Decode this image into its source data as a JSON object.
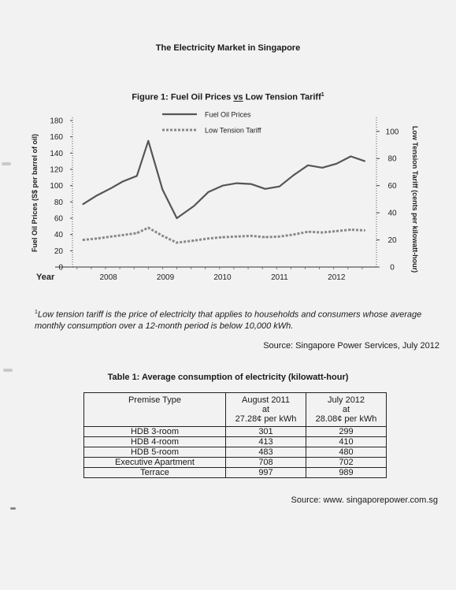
{
  "document": {
    "title": "The Electricity Market in Singapore",
    "figure_title": {
      "pre": "Figure 1: Fuel Oil Prices ",
      "vs": "vs",
      "post": " Low Tension Tariff",
      "sup": "1"
    }
  },
  "chart_data": {
    "type": "line",
    "title": "Figure 1: Fuel Oil Prices vs Low Tension Tariff",
    "x_label": "Year",
    "x_ticks": [
      "2008",
      "2009",
      "2010",
      "2011",
      "2012"
    ],
    "y_left_label": "Fuel Oil Prices (S$ per barrel of oil)",
    "y_left_ticks": [
      "0",
      "20",
      "40",
      "60",
      "80",
      "100",
      "120",
      "140",
      "160",
      "180"
    ],
    "y_left_range": [
      0,
      180
    ],
    "y_right_label": "Low Tension Tariff (cents per kilowatt-hour)",
    "y_right_ticks": [
      "0",
      "20",
      "40",
      "60",
      "80",
      "100"
    ],
    "y_right_range": [
      0,
      108
    ],
    "legend_position": "top-center",
    "series": [
      {
        "name": "Fuel Oil Prices",
        "axis": "left",
        "style": "solid",
        "color": "#555555",
        "x": [
          2007.6,
          2007.85,
          2008.1,
          2008.3,
          2008.55,
          2008.75,
          2009.0,
          2009.25,
          2009.55,
          2009.8,
          2010.05,
          2010.3,
          2010.55,
          2010.8,
          2011.05,
          2011.3,
          2011.55,
          2011.8,
          2012.05,
          2012.3,
          2012.55
        ],
        "values": [
          77,
          88,
          97,
          105,
          112,
          155,
          95,
          60,
          75,
          92,
          100,
          103,
          102,
          96,
          99,
          113,
          125,
          122,
          127,
          136,
          130
        ]
      },
      {
        "name": "Low Tension Tariff",
        "axis": "right",
        "style": "dashed",
        "color": "#888888",
        "x": [
          2007.6,
          2007.85,
          2008.1,
          2008.3,
          2008.55,
          2008.75,
          2009.0,
          2009.25,
          2009.55,
          2009.8,
          2010.05,
          2010.3,
          2010.55,
          2010.8,
          2011.05,
          2011.3,
          2011.55,
          2011.8,
          2012.05,
          2012.3,
          2012.55
        ],
        "values": [
          20,
          21,
          22.5,
          23.5,
          25,
          29,
          23,
          18,
          19.5,
          21,
          22,
          22.5,
          23,
          22,
          22.5,
          24,
          26,
          25.5,
          26.5,
          27.5,
          27
        ]
      }
    ]
  },
  "footnote": {
    "sup": "1",
    "text": "Low tension tariff is the price of electricity that applies to households and consumers whose average monthly consumption over a 12-month period is below 10,000 kWh."
  },
  "source1": "Source: Singapore Power Services, July 2012",
  "table": {
    "title": "Table 1: Average consumption of electricity (kilowatt-hour)",
    "headers": [
      {
        "line1": "Premise Type",
        "line2": "",
        "line3": ""
      },
      {
        "line1": "August 2011",
        "line2": "at",
        "line3": "27.28¢ per kWh"
      },
      {
        "line1": "July 2012",
        "line2": "at",
        "line3": "28.08¢ per kWh"
      }
    ],
    "rows": [
      [
        "HDB 3-room",
        "301",
        "299"
      ],
      [
        "HDB 4-room",
        "413",
        "410"
      ],
      [
        "HDB 5-room",
        "483",
        "480"
      ],
      [
        "Executive Apartment",
        "708",
        "702"
      ],
      [
        "Terrace",
        "997",
        "989"
      ]
    ]
  },
  "source2": "Source: www. singaporepower.com.sg"
}
